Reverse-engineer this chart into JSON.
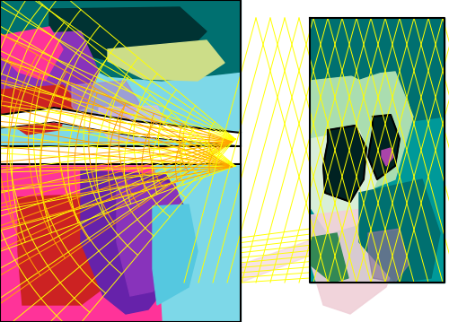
{
  "fig_width": 5.0,
  "fig_height": 3.59,
  "dpi": 100,
  "bg_color": "#ffffff",
  "colors": {
    "teal_dark": "#007070",
    "teal_med": "#008888",
    "teal_bright": "#009999",
    "cyan_light": "#7DD8E8",
    "cyan_med": "#55C8E0",
    "green_light": "#AADDB0",
    "green_yellow": "#CCDD88",
    "green_dark": "#338855",
    "purple_dark": "#6622AA",
    "purple_med": "#8833BB",
    "purple_light": "#AA88CC",
    "pink_hot": "#FF3399",
    "pink_med": "#FF66AA",
    "pink_light": "#FFAABB",
    "red_dark": "#CC2222",
    "orange": "#FF6600",
    "white": "#FFFFFF",
    "black": "#111111",
    "pale_pink": "#F0D0D8",
    "pale_green": "#C8E8C0",
    "gray_purple": "#887799"
  },
  "lw": 0.7
}
